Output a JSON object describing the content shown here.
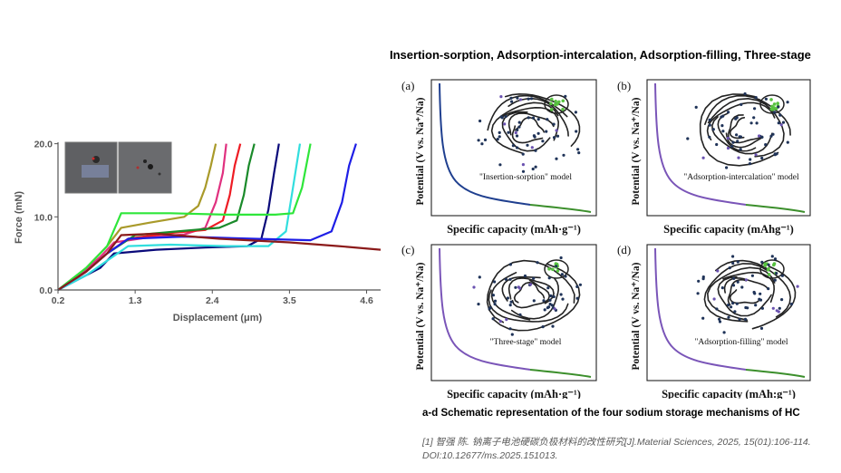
{
  "slide_title": "Insertion-sorption, Adsorption-intercalation, Adsorption-filling, Three-stage",
  "caption": "a-d Schematic representation of the four sodium storage mechanisms of HC",
  "reference": {
    "line1": "[1] 智强 陈. 钠离子电池硬碳负极材料的改性研究[J].Material Sciences, 2025, 15(01):106-114.",
    "line2": "DOI:10.12677/ms.2025.151013."
  },
  "panels": [
    {
      "letter": "(a)",
      "model": "\"Insertion-sorption\" model",
      "ylabel": "Potential (V vs. Na⁺/Na)",
      "xlabel": "Specific capacity (mAh·g⁻¹)"
    },
    {
      "letter": "(b)",
      "model": "\"Adsorption-intercalation\" model",
      "ylabel": "Potential (V vs. Na⁺/Na)",
      "xlabel": "Specific capacity (mAhg⁻¹)"
    },
    {
      "letter": "(c)",
      "model": "\"Three-stage\" model",
      "ylabel": "Potential (V vs. Na⁺/Na)",
      "xlabel": "Specific capacity (mAh·g⁻¹)"
    },
    {
      "letter": "(d)",
      "model": "\"Adsorption-filling\" model",
      "ylabel": "Potential (V vs. Na⁺/Na)",
      "xlabel": "Specific capacity (mAh:g⁻¹)"
    }
  ],
  "colors": {
    "curve_blue": "#1f3f8f",
    "curve_purple": "#7a55b8",
    "curve_green": "#3c8f2c",
    "dot": "#1f3358",
    "green_dot": "#57c23f"
  },
  "chart_data": {
    "type": "line",
    "xlabel": "Displacement (μm)",
    "ylabel": "Force (mN)",
    "xticks": [
      "0.2",
      "1.3",
      "2.4",
      "3.5",
      "4.6"
    ],
    "yticks": [
      "0.0",
      "10.0",
      "20.0"
    ],
    "xlim": [
      0.2,
      4.8
    ],
    "ylim": [
      0,
      20.2
    ],
    "grid": false,
    "series": [
      {
        "color": "#a99a2a",
        "x": [
          0.2,
          0.6,
          0.9,
          1.1,
          1.5,
          2.0,
          2.2,
          2.3,
          2.38,
          2.45
        ],
        "y": [
          0,
          3,
          6,
          8.5,
          9.2,
          10,
          11.5,
          14,
          17,
          20
        ]
      },
      {
        "color": "#e0307f",
        "x": [
          0.2,
          0.5,
          0.8,
          1.0,
          1.5,
          2.0,
          2.3,
          2.45,
          2.55,
          2.6
        ],
        "y": [
          0,
          2,
          4.5,
          6.5,
          7.2,
          7.6,
          8.5,
          12,
          16,
          20
        ]
      },
      {
        "color": "#ee1c24",
        "x": [
          0.2,
          0.6,
          0.9,
          1.2,
          1.8,
          2.3,
          2.55,
          2.65,
          2.72,
          2.8
        ],
        "y": [
          0,
          2.5,
          5,
          7,
          7.8,
          8.2,
          9.5,
          13,
          17,
          20
        ]
      },
      {
        "color": "#1a8a2a",
        "x": [
          0.2,
          0.6,
          0.9,
          1.3,
          1.9,
          2.5,
          2.75,
          2.85,
          2.92,
          3.0
        ],
        "y": [
          0,
          2.5,
          5,
          7.5,
          8,
          8.5,
          9.5,
          13,
          17,
          20
        ]
      },
      {
        "color": "#0a0a7a",
        "x": [
          0.2,
          0.5,
          0.8,
          1.0,
          1.6,
          2.3,
          2.9,
          3.1,
          3.2,
          3.28,
          3.35
        ],
        "y": [
          0,
          1.5,
          3,
          5,
          5.5,
          5.8,
          6,
          7,
          11,
          16,
          20
        ]
      },
      {
        "color": "#31dede",
        "x": [
          0.2,
          0.6,
          0.9,
          1.2,
          1.8,
          2.6,
          3.2,
          3.45,
          3.55,
          3.65
        ],
        "y": [
          0,
          2,
          4,
          6,
          6.2,
          6,
          6,
          8,
          14,
          20
        ]
      },
      {
        "color": "#2ee63a",
        "x": [
          0.2,
          0.6,
          0.9,
          1.1,
          1.8,
          2.6,
          3.3,
          3.55,
          3.68,
          3.8
        ],
        "y": [
          0,
          3,
          6,
          10.5,
          10.5,
          10.3,
          10.3,
          10.5,
          14,
          20
        ]
      },
      {
        "color": "#1e1ee6",
        "x": [
          0.2,
          0.6,
          0.9,
          1.2,
          2.0,
          3.0,
          3.8,
          4.1,
          4.25,
          4.35,
          4.45
        ],
        "y": [
          0,
          2.5,
          5,
          7,
          7.3,
          7,
          6.8,
          8,
          12,
          17,
          20
        ]
      },
      {
        "color": "#8b1a1a",
        "x": [
          0.2,
          0.6,
          0.9,
          1.1,
          1.6,
          2.5,
          3.5,
          4.2,
          4.8
        ],
        "y": [
          0,
          2.5,
          5,
          7.5,
          7.7,
          7,
          6.5,
          6,
          5.5
        ]
      }
    ]
  }
}
